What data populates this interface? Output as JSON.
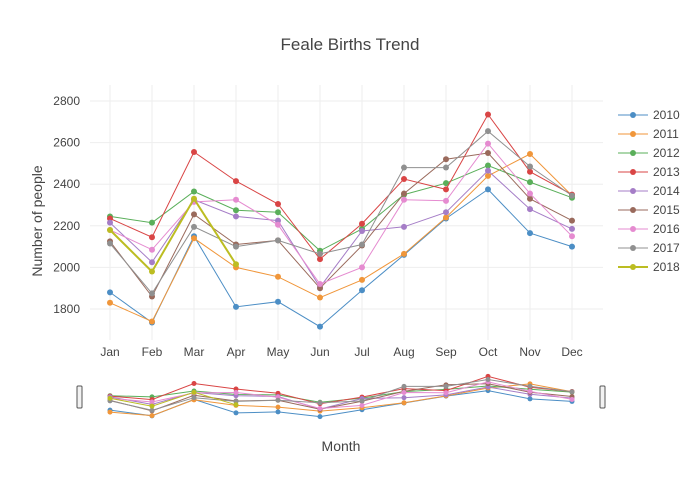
{
  "chart_data": {
    "type": "line",
    "title": "Feale Births Trend",
    "xlabel": "Month",
    "ylabel": "Number of people",
    "categories": [
      "Jan",
      "Feb",
      "Mar",
      "Apr",
      "May",
      "Jun",
      "Jul",
      "Aug",
      "Sep",
      "Oct",
      "Nov",
      "Dec"
    ],
    "yticks": [
      1800,
      2000,
      2200,
      2400,
      2600,
      2800
    ],
    "ylim": [
      1680,
      2820
    ],
    "grid": true,
    "legend_position": "right",
    "range_slider": true,
    "series": [
      {
        "name": "2010",
        "color": "#4c8ec5",
        "values": [
          1880,
          1735,
          2150,
          1810,
          1835,
          1715,
          1890,
          2060,
          2235,
          2375,
          2165,
          2100
        ]
      },
      {
        "name": "2011",
        "color": "#f0963a",
        "values": [
          1830,
          1740,
          2140,
          2000,
          1955,
          1855,
          1940,
          2065,
          2240,
          2440,
          2545,
          2345
        ]
      },
      {
        "name": "2012",
        "color": "#5aaf5a",
        "values": [
          2245,
          2215,
          2365,
          2275,
          2265,
          2080,
          2185,
          2350,
          2405,
          2490,
          2410,
          2335
        ]
      },
      {
        "name": "2013",
        "color": "#d94545",
        "values": [
          2235,
          2145,
          2555,
          2415,
          2305,
          2040,
          2210,
          2425,
          2375,
          2735,
          2460,
          2350
        ]
      },
      {
        "name": "2014",
        "color": "#a57dc7",
        "values": [
          2215,
          2025,
          2325,
          2245,
          2225,
          1905,
          2175,
          2195,
          2265,
          2465,
          2280,
          2185
        ]
      },
      {
        "name": "2015",
        "color": "#9a6a5c",
        "values": [
          2125,
          1860,
          2255,
          2110,
          2130,
          1900,
          2105,
          2355,
          2520,
          2550,
          2330,
          2225
        ]
      },
      {
        "name": "2016",
        "color": "#e58bd0",
        "values": [
          2180,
          2085,
          2315,
          2325,
          2205,
          1920,
          2000,
          2325,
          2320,
          2595,
          2355,
          2150
        ]
      },
      {
        "name": "2017",
        "color": "#909090",
        "values": [
          2115,
          1875,
          2195,
          2100,
          2130,
          2065,
          2110,
          2480,
          2480,
          2655,
          2485,
          2345
        ]
      },
      {
        "name": "2018",
        "color": "#bcbd22",
        "values": [
          2180,
          1980,
          2330,
          2015,
          null,
          null,
          null,
          null,
          null,
          null,
          null,
          null
        ]
      }
    ]
  }
}
